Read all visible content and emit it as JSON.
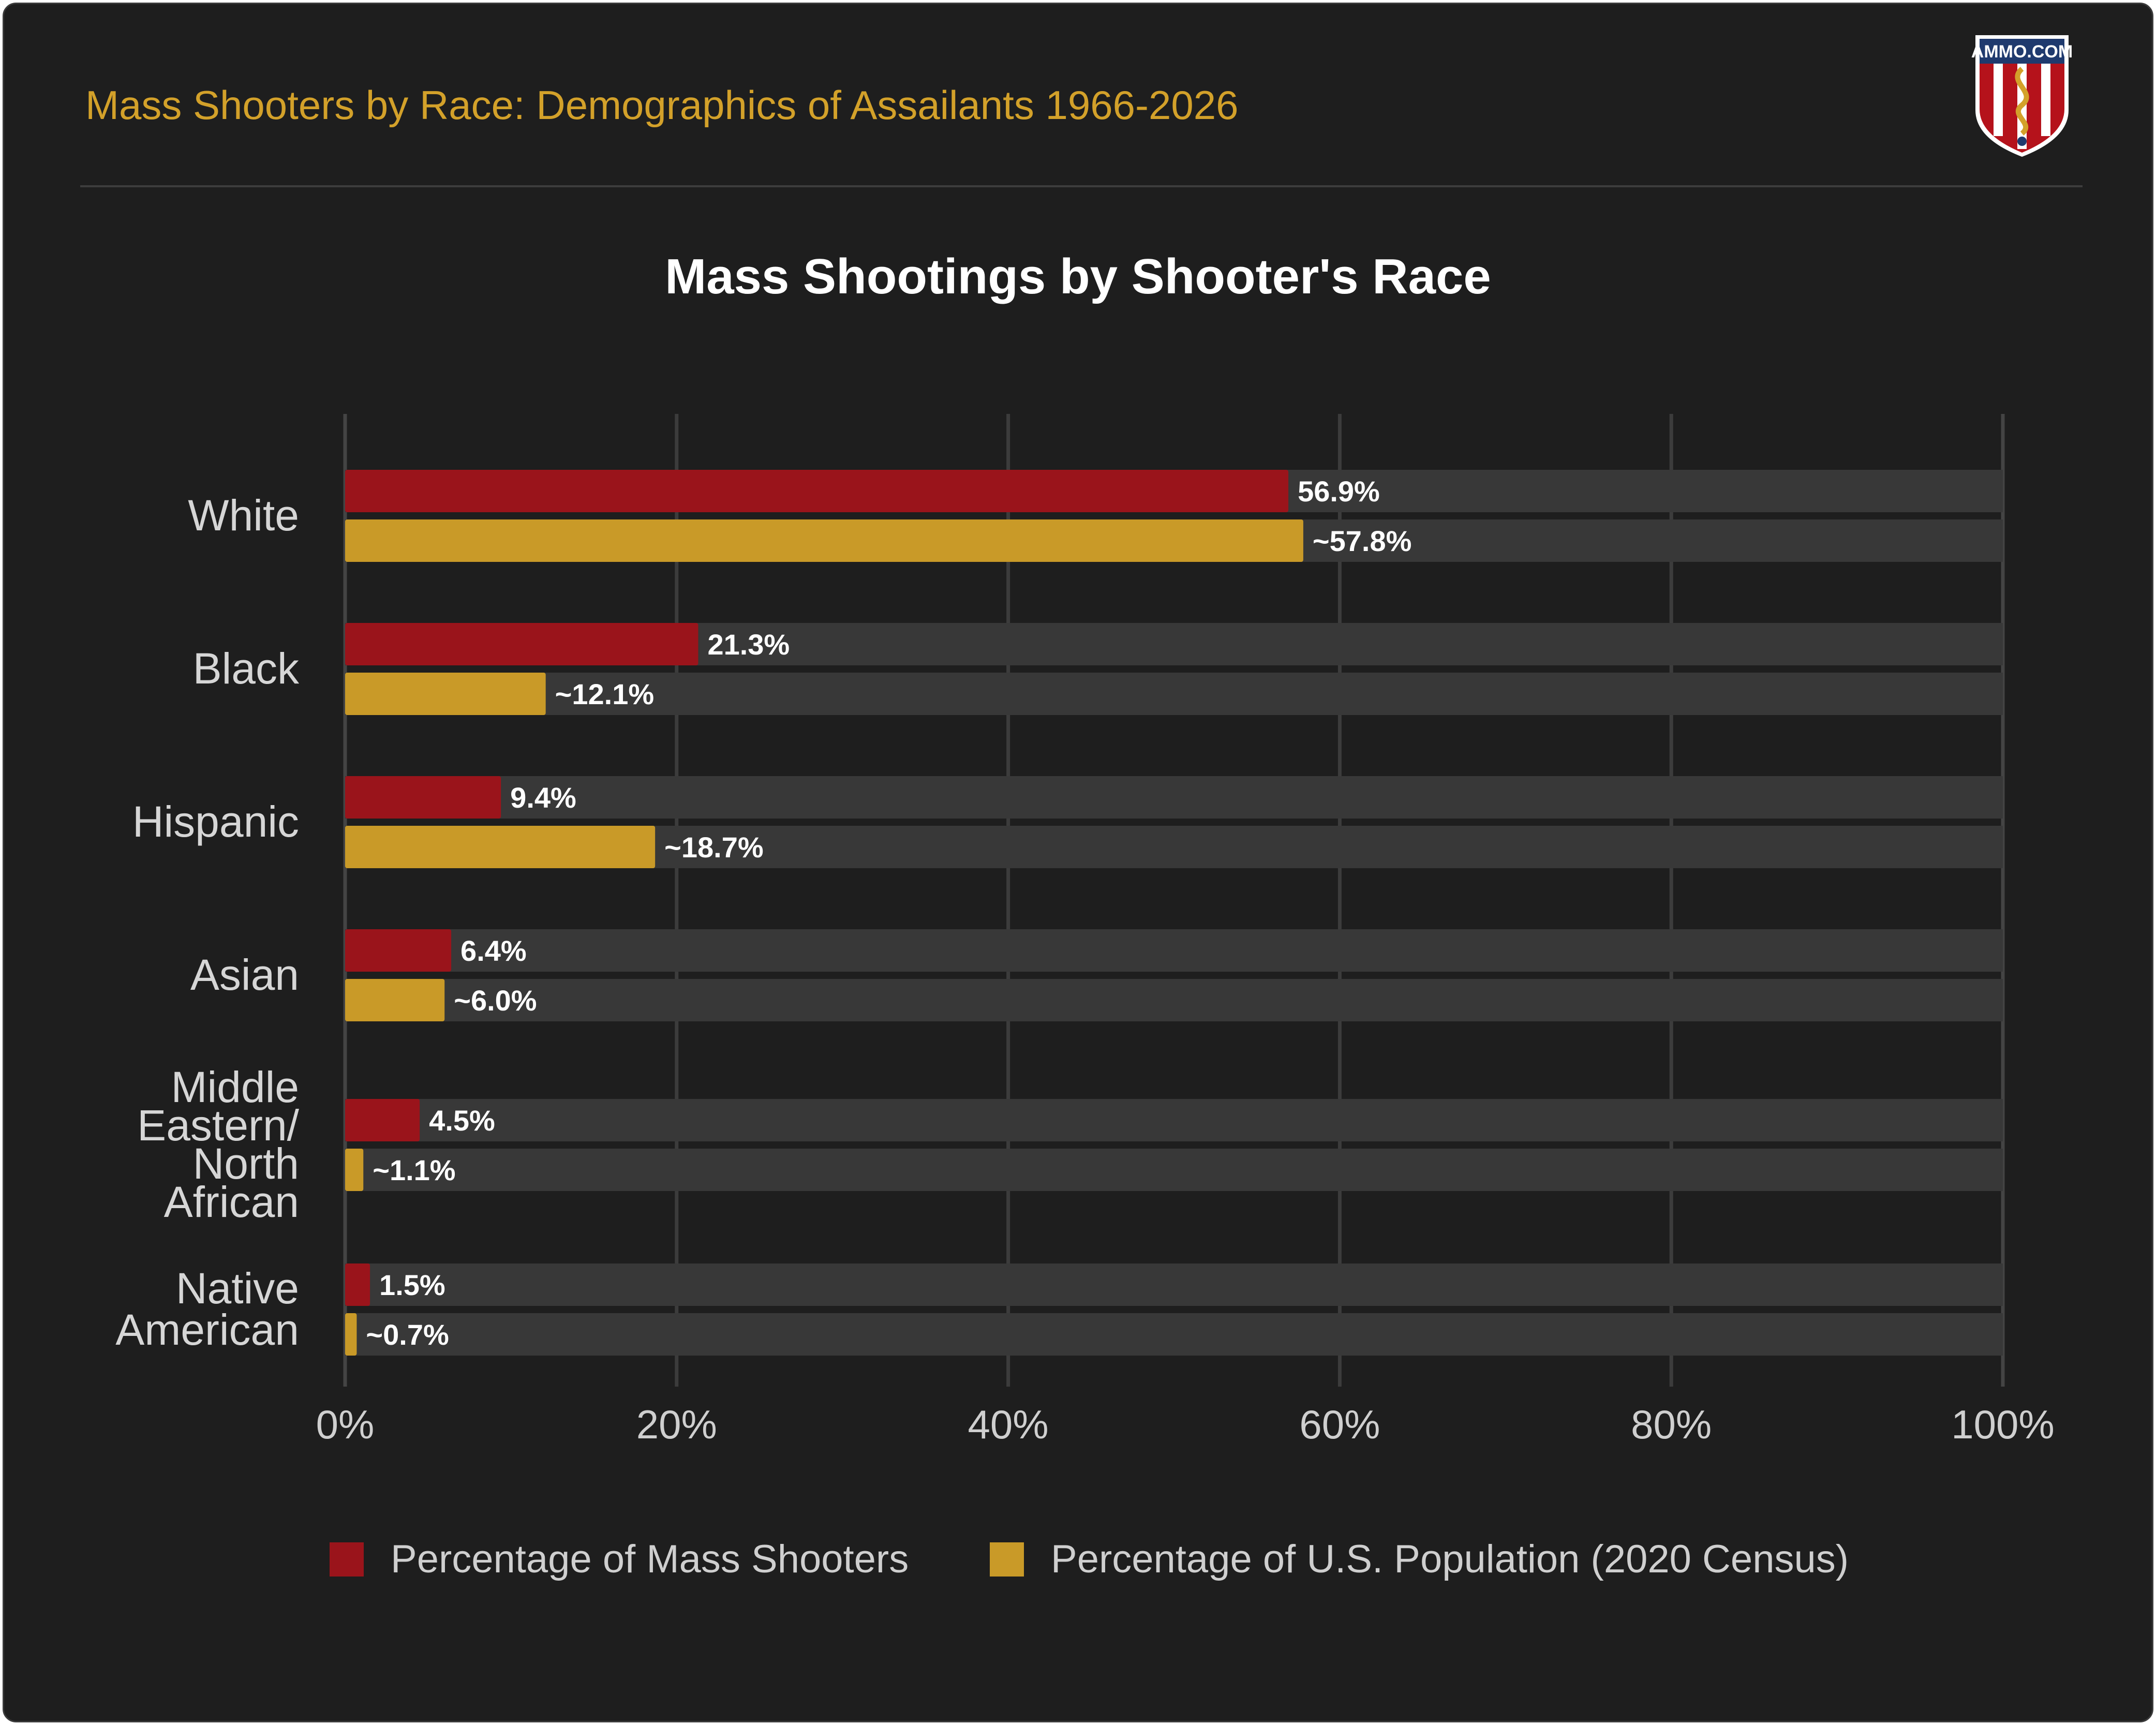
{
  "header": {
    "title": "Mass Shooters by Race: Demographics of Assailants 1966-2026",
    "logo_text": "AMMO.COM"
  },
  "colors": {
    "background": "#1e1e1e",
    "track": "#383838",
    "grid": "#3c3c3c",
    "title_gold": "#d3a12a",
    "series_shooters": "#9a141b",
    "series_population": "#c99a28"
  },
  "chart_data": {
    "type": "bar",
    "orientation": "horizontal",
    "title": "Mass Shootings by Shooter's Race",
    "categories": [
      [
        "White"
      ],
      [
        "Black"
      ],
      [
        "Hispanic"
      ],
      [
        "Asian"
      ],
      [
        "Middle",
        "Eastern/",
        "North",
        "African"
      ],
      [
        "Native",
        "American"
      ]
    ],
    "series": [
      {
        "name": "Percentage of Mass Shooters",
        "color": "#9a141b",
        "values": [
          56.9,
          21.3,
          9.4,
          6.4,
          4.5,
          1.5
        ],
        "labels": [
          "56.9%",
          "21.3%",
          "9.4%",
          "6.4%",
          "4.5%",
          "1.5%"
        ]
      },
      {
        "name": "Percentage of U.S. Population (2020 Census)",
        "color": "#c99a28",
        "values": [
          57.8,
          12.1,
          18.7,
          6.0,
          1.1,
          0.7
        ],
        "labels": [
          "~57.8%",
          "~12.1%",
          "~18.7%",
          "~6.0%",
          "~1.1%",
          "~0.7%"
        ]
      }
    ],
    "x_ticks": [
      "0%",
      "20%",
      "40%",
      "60%",
      "80%",
      "100%"
    ],
    "xlim": [
      0,
      100
    ],
    "grid": true,
    "legend_position": "bottom"
  }
}
